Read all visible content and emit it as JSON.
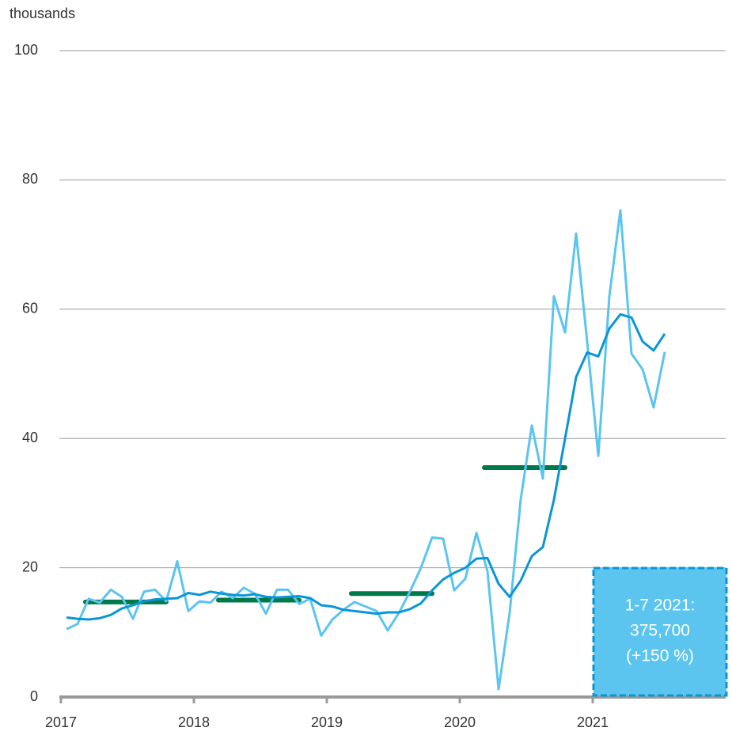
{
  "chart_data": {
    "type": "line",
    "y_label": "thousands",
    "x": [
      2017.042,
      2017.125,
      2017.208,
      2017.292,
      2017.375,
      2017.458,
      2017.542,
      2017.625,
      2017.708,
      2017.792,
      2017.875,
      2017.958,
      2018.042,
      2018.125,
      2018.208,
      2018.292,
      2018.375,
      2018.458,
      2018.542,
      2018.625,
      2018.708,
      2018.792,
      2018.875,
      2018.958,
      2019.042,
      2019.125,
      2019.208,
      2019.292,
      2019.375,
      2019.458,
      2019.542,
      2019.625,
      2019.708,
      2019.792,
      2019.875,
      2019.958,
      2020.042,
      2020.125,
      2020.208,
      2020.292,
      2020.375,
      2020.458,
      2020.542,
      2020.625,
      2020.708,
      2020.792,
      2020.875,
      2020.958,
      2021.042,
      2021.125,
      2021.208,
      2021.292,
      2021.375,
      2021.458,
      2021.542
    ],
    "series": [
      {
        "color": "#5bc5ef",
        "values": [
          10.5,
          11.3,
          15.2,
          14.6,
          16.6,
          15.5,
          12.1,
          16.3,
          16.6,
          14.8,
          21,
          13.3,
          14.8,
          14.6,
          16.3,
          15.3,
          16.9,
          16,
          12.9,
          16.6,
          16.6,
          14.4,
          15.2,
          9.5,
          12,
          13.5,
          14.7,
          14,
          13.3,
          10.3,
          13,
          16.3,
          20,
          24.7,
          24.5,
          16.5,
          18.3,
          25.4,
          19.5,
          1.2,
          13,
          30.5,
          42,
          33.8,
          62,
          56.4,
          71.7,
          55,
          37.3,
          62,
          75.3,
          53.1,
          50.7,
          44.8,
          53.4
        ]
      },
      {
        "color": "#0a96d6",
        "values": [
          12.3,
          12.1,
          12,
          12.2,
          12.7,
          13.7,
          14.2,
          14.8,
          15.1,
          15.2,
          15.3,
          16.1,
          15.8,
          16.3,
          16,
          15.8,
          15.7,
          15.9,
          15.5,
          15.4,
          15.5,
          15.6,
          15.3,
          14.2,
          14,
          13.5,
          13.3,
          13.1,
          12.9,
          13.1,
          13.1,
          13.6,
          14.5,
          16.5,
          18.2,
          19.2,
          20,
          21.4,
          21.5,
          17.5,
          15.5,
          18,
          21.8,
          23.2,
          30.5,
          40,
          49.5,
          53.3,
          52.7,
          57,
          59.2,
          58.7,
          55,
          53.6,
          56.2
        ]
      }
    ],
    "annual_average": {
      "color": "#00794a",
      "values": [
        14.7,
        15.0,
        16.0,
        35.5
      ]
    },
    "annotation": [
      "1-7 2021:",
      "375,700",
      "(+150 %)"
    ],
    "annotation_color": "#5bc5ef",
    "xlim": [
      2017,
      2022
    ],
    "xticks": [
      2017,
      2018,
      2019,
      2020,
      2021
    ],
    "ylim": [
      0,
      100
    ],
    "yticks": [
      0,
      20,
      40,
      60,
      80,
      100
    ],
    "grid": true
  }
}
